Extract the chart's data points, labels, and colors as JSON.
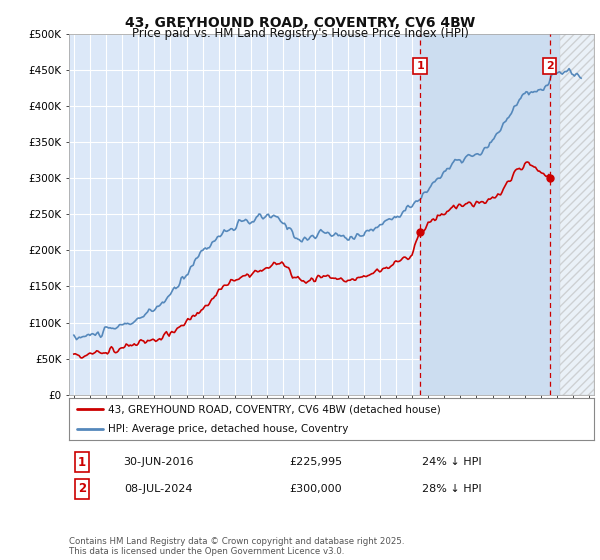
{
  "title": "43, GREYHOUND ROAD, COVENTRY, CV6 4BW",
  "subtitle": "Price paid vs. HM Land Registry's House Price Index (HPI)",
  "background_color": "#ffffff",
  "plot_bg_color": "#dce8f8",
  "grid_color": "#ffffff",
  "red_line_color": "#cc0000",
  "blue_line_color": "#5588bb",
  "shade_color": "#ccddf0",
  "marker1_date_x": 2016.5,
  "marker2_date_x": 2024.54,
  "annotation1": "1",
  "annotation2": "2",
  "legend_label_red": "43, GREYHOUND ROAD, COVENTRY, CV6 4BW (detached house)",
  "legend_label_blue": "HPI: Average price, detached house, Coventry",
  "table_row1": [
    "1",
    "30-JUN-2016",
    "£225,995",
    "24% ↓ HPI"
  ],
  "table_row2": [
    "2",
    "08-JUL-2024",
    "£300,000",
    "28% ↓ HPI"
  ],
  "footer": "Contains HM Land Registry data © Crown copyright and database right 2025.\nThis data is licensed under the Open Government Licence v3.0.",
  "ylim": [
    0,
    500000
  ],
  "xlim_start": 1994.7,
  "xlim_end": 2027.3,
  "yticks": [
    0,
    50000,
    100000,
    150000,
    200000,
    250000,
    300000,
    350000,
    400000,
    450000,
    500000
  ],
  "ytick_labels": [
    "£0",
    "£50K",
    "£100K",
    "£150K",
    "£200K",
    "£250K",
    "£300K",
    "£350K",
    "£400K",
    "£450K",
    "£500K"
  ]
}
